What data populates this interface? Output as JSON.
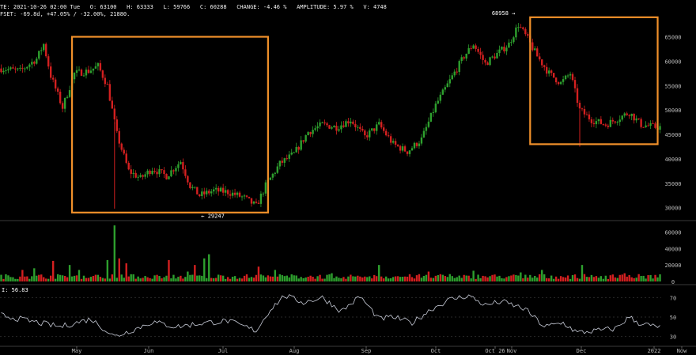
{
  "header": {
    "line1": "TE: 2021-10-26 02:00 Tue   O: 63100   H: 63333   L: 59766   C: 60288   CHANGE: -4.46 %   AMPLITUDE: 5.97 %   V: 4748",
    "line2": "FSET: -69.8d, +47.05% / -32.00%, 21880."
  },
  "rsi_label": "I: 56.83",
  "annotations": {
    "high_label": "68958 →",
    "low_label": "← 29247"
  },
  "colors": {
    "background": "#000000",
    "up": "#2ea02e",
    "down": "#d42020",
    "rsi_line": "#c8ccd8",
    "highlight_box": "#f0902a",
    "grid": "#3a3a3a"
  },
  "chart_data": {
    "type": "candlestick",
    "price_axis": {
      "ticks": [
        30000,
        35000,
        40000,
        45000,
        50000,
        55000,
        60000,
        65000
      ],
      "ylim": [
        28000,
        68000
      ]
    },
    "volume_axis": {
      "ticks": [
        0,
        20000,
        40000,
        60000
      ],
      "ylim": [
        0,
        70000
      ]
    },
    "rsi_axis": {
      "ticks": [
        30,
        50,
        70
      ],
      "ylim": [
        20,
        80
      ]
    },
    "x_ticks": [
      "May",
      "Jun",
      "Jul",
      "Aug",
      "Sep",
      "Oct",
      "Oct 26",
      "Nov",
      "Dec",
      "2022",
      "Now"
    ],
    "price_anchors": [
      {
        "i": 0,
        "p": 58500
      },
      {
        "i": 8,
        "p": 58000
      },
      {
        "i": 15,
        "p": 60500
      },
      {
        "i": 18,
        "p": 63500
      },
      {
        "i": 21,
        "p": 57000
      },
      {
        "i": 26,
        "p": 50500
      },
      {
        "i": 31,
        "p": 57500
      },
      {
        "i": 37,
        "p": 58000
      },
      {
        "i": 41,
        "p": 59000
      },
      {
        "i": 45,
        "p": 55000
      },
      {
        "i": 49,
        "p": 45000
      },
      {
        "i": 54,
        "p": 37500
      },
      {
        "i": 59,
        "p": 36000
      },
      {
        "i": 64,
        "p": 38000
      },
      {
        "i": 70,
        "p": 36500
      },
      {
        "i": 76,
        "p": 39500
      },
      {
        "i": 80,
        "p": 34500
      },
      {
        "i": 84,
        "p": 32500
      },
      {
        "i": 90,
        "p": 33500
      },
      {
        "i": 96,
        "p": 33200
      },
      {
        "i": 103,
        "p": 32000
      },
      {
        "i": 108,
        "p": 30300
      },
      {
        "i": 112,
        "p": 34500
      },
      {
        "i": 118,
        "p": 39000
      },
      {
        "i": 124,
        "p": 41000
      },
      {
        "i": 130,
        "p": 45500
      },
      {
        "i": 136,
        "p": 47000
      },
      {
        "i": 142,
        "p": 46500
      },
      {
        "i": 148,
        "p": 48000
      },
      {
        "i": 154,
        "p": 44500
      },
      {
        "i": 160,
        "p": 47000
      },
      {
        "i": 166,
        "p": 43000
      },
      {
        "i": 172,
        "p": 41500
      },
      {
        "i": 178,
        "p": 44000
      },
      {
        "i": 184,
        "p": 51000
      },
      {
        "i": 190,
        "p": 56000
      },
      {
        "i": 196,
        "p": 61000
      },
      {
        "i": 200,
        "p": 63500
      },
      {
        "i": 205,
        "p": 59500
      },
      {
        "i": 210,
        "p": 61500
      },
      {
        "i": 215,
        "p": 63500
      },
      {
        "i": 219,
        "p": 67500
      },
      {
        "i": 223,
        "p": 64500
      },
      {
        "i": 227,
        "p": 61000
      },
      {
        "i": 232,
        "p": 57500
      },
      {
        "i": 237,
        "p": 55500
      },
      {
        "i": 241,
        "p": 57500
      },
      {
        "i": 245,
        "p": 50000
      },
      {
        "i": 250,
        "p": 48000
      },
      {
        "i": 256,
        "p": 47000
      },
      {
        "i": 262,
        "p": 48500
      },
      {
        "i": 266,
        "p": 49500
      },
      {
        "i": 271,
        "p": 47000
      },
      {
        "i": 277,
        "p": 46500
      }
    ],
    "rsi_anchors": [
      {
        "i": 0,
        "v": 52
      },
      {
        "i": 12,
        "v": 46
      },
      {
        "i": 25,
        "v": 40
      },
      {
        "i": 38,
        "v": 48
      },
      {
        "i": 48,
        "v": 30
      },
      {
        "i": 56,
        "v": 37
      },
      {
        "i": 64,
        "v": 45
      },
      {
        "i": 74,
        "v": 40
      },
      {
        "i": 86,
        "v": 44
      },
      {
        "i": 96,
        "v": 46
      },
      {
        "i": 108,
        "v": 36
      },
      {
        "i": 114,
        "v": 58
      },
      {
        "i": 120,
        "v": 72
      },
      {
        "i": 128,
        "v": 65
      },
      {
        "i": 136,
        "v": 70
      },
      {
        "i": 144,
        "v": 56
      },
      {
        "i": 152,
        "v": 71
      },
      {
        "i": 160,
        "v": 48
      },
      {
        "i": 166,
        "v": 50
      },
      {
        "i": 174,
        "v": 44
      },
      {
        "i": 182,
        "v": 58
      },
      {
        "i": 190,
        "v": 68
      },
      {
        "i": 198,
        "v": 72
      },
      {
        "i": 205,
        "v": 62
      },
      {
        "i": 212,
        "v": 66
      },
      {
        "i": 222,
        "v": 58
      },
      {
        "i": 230,
        "v": 40
      },
      {
        "i": 238,
        "v": 44
      },
      {
        "i": 244,
        "v": 34
      },
      {
        "i": 252,
        "v": 36
      },
      {
        "i": 260,
        "v": 38
      },
      {
        "i": 266,
        "v": 50
      },
      {
        "i": 270,
        "v": 44
      },
      {
        "i": 277,
        "v": 40
      }
    ],
    "volume_spikes": [
      {
        "i": 9,
        "v": 14000
      },
      {
        "i": 14,
        "v": 16000
      },
      {
        "i": 22,
        "v": 25000
      },
      {
        "i": 29,
        "v": 20000
      },
      {
        "i": 33,
        "v": 14000
      },
      {
        "i": 45,
        "v": 26000
      },
      {
        "i": 48,
        "v": 68000
      },
      {
        "i": 50,
        "v": 28000
      },
      {
        "i": 53,
        "v": 22000
      },
      {
        "i": 71,
        "v": 26000
      },
      {
        "i": 79,
        "v": 12000
      },
      {
        "i": 82,
        "v": 20000
      },
      {
        "i": 86,
        "v": 28000
      },
      {
        "i": 88,
        "v": 33000
      },
      {
        "i": 109,
        "v": 18000
      },
      {
        "i": 116,
        "v": 14000
      },
      {
        "i": 140,
        "v": 10000
      },
      {
        "i": 160,
        "v": 20000
      },
      {
        "i": 181,
        "v": 12000
      },
      {
        "i": 200,
        "v": 13000
      },
      {
        "i": 220,
        "v": 11000
      },
      {
        "i": 229,
        "v": 14000
      },
      {
        "i": 246,
        "v": 20000
      },
      {
        "i": 264,
        "v": 10000
      }
    ],
    "highlight_boxes": [
      {
        "from_i": 30,
        "to_i": 113,
        "price_top": 65000,
        "price_bottom": 29000
      },
      {
        "from_i": 224,
        "to_i": 278,
        "price_top": 69000,
        "price_bottom": 43000
      }
    ],
    "high_marker": {
      "i": 219,
      "price": 68958
    },
    "low_marker": {
      "i": 84,
      "price": 29247
    }
  }
}
